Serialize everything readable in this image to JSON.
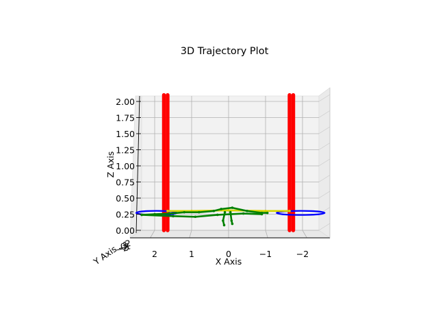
{
  "chart_data": {
    "type": "scatter",
    "projection": "3d",
    "title": "3D Trajectory Plot",
    "xlabel": "X Axis",
    "ylabel": "Y Axis",
    "zlabel": "Z Axis",
    "xlim": [
      2.5,
      -2.5
    ],
    "ylim": [
      -2,
      2
    ],
    "zlim": [
      0,
      2
    ],
    "grid": true,
    "x_ticks": [
      {
        "value": 2,
        "label": "2"
      },
      {
        "value": 1,
        "label": "1"
      },
      {
        "value": 0,
        "label": "0"
      },
      {
        "value": -1,
        "label": "−1"
      },
      {
        "value": -2,
        "label": "−2"
      }
    ],
    "y_tick_labels": [
      "−2",
      "−1",
      "0",
      "1",
      "2"
    ],
    "z_ticks": [
      {
        "value": 0.0,
        "label": "0.00"
      },
      {
        "value": 0.25,
        "label": "0.25"
      },
      {
        "value": 0.5,
        "label": "0.50"
      },
      {
        "value": 0.75,
        "label": "0.75"
      },
      {
        "value": 1.0,
        "label": "1.00"
      },
      {
        "value": 1.25,
        "label": "1.25"
      },
      {
        "value": 1.5,
        "label": "1.50"
      },
      {
        "value": 1.75,
        "label": "1.75"
      },
      {
        "value": 2.0,
        "label": "2.00"
      }
    ],
    "series": [
      {
        "color": "#ff0000",
        "kind": "vertical-lines",
        "lines": [
          {
            "x": 1.75,
            "z0": 0.0,
            "z1": 2.1
          },
          {
            "x": 1.65,
            "z0": 0.0,
            "z1": 2.1
          },
          {
            "x": -1.65,
            "z0": 0.0,
            "z1": 2.1
          },
          {
            "x": -1.75,
            "z0": 0.0,
            "z1": 2.1
          }
        ]
      },
      {
        "color": "#0000ff",
        "kind": "rings",
        "rings": [
          {
            "cx": 1.95,
            "rx": 0.55,
            "z": 0.27
          },
          {
            "cx": -1.95,
            "rx": 0.65,
            "z": 0.27
          }
        ]
      },
      {
        "color": "#d4d400",
        "kind": "path",
        "points": [
          [
            1.65,
            0.3
          ],
          [
            1.0,
            0.3
          ],
          [
            0.0,
            0.31
          ],
          [
            -1.0,
            0.3
          ],
          [
            -1.65,
            0.3
          ]
        ]
      },
      {
        "color": "#008000",
        "kind": "path",
        "points": [
          [
            2.35,
            0.24
          ],
          [
            2.0,
            0.25
          ],
          [
            1.6,
            0.26
          ],
          [
            1.2,
            0.28
          ],
          [
            0.8,
            0.28
          ],
          [
            0.4,
            0.3
          ],
          [
            0.2,
            0.33
          ],
          [
            -0.1,
            0.35
          ],
          [
            -0.5,
            0.3
          ],
          [
            -0.9,
            0.27
          ],
          [
            -1.05,
            0.27
          ]
        ]
      },
      {
        "color": "#008000",
        "kind": "path",
        "points": [
          [
            2.35,
            0.24
          ],
          [
            1.5,
            0.22
          ],
          [
            0.9,
            0.21
          ],
          [
            0.3,
            0.24
          ],
          [
            -0.4,
            0.26
          ],
          [
            -0.9,
            0.25
          ]
        ]
      },
      {
        "color": "#008000",
        "kind": "path",
        "points": [
          [
            0.1,
            0.28
          ],
          [
            0.15,
            0.15
          ],
          [
            0.12,
            0.08
          ]
        ]
      },
      {
        "color": "#008000",
        "kind": "path",
        "points": [
          [
            -0.05,
            0.28
          ],
          [
            -0.08,
            0.15
          ],
          [
            -0.1,
            0.1
          ]
        ]
      }
    ]
  }
}
